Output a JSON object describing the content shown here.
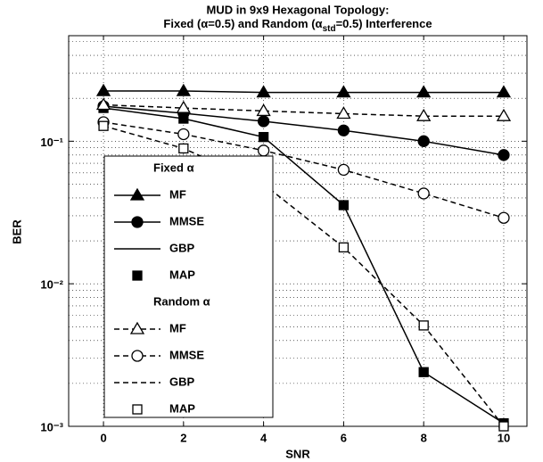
{
  "chart_data": {
    "type": "line",
    "title": [
      "MUD in 9x9 Hexagonal Topology:",
      "Fixed (α=0.5) and Random (α",
      "std",
      "=0.5) Interference"
    ],
    "x_label": "SNR",
    "y_label": "BER",
    "x": [
      0,
      2,
      4,
      6,
      8,
      10
    ],
    "xlim": [
      -0.87,
      10.58
    ],
    "xticks": [
      0,
      2,
      4,
      6,
      8,
      10
    ],
    "ylim": [
      0.001,
      0.55
    ],
    "yticks": [
      {
        "value": 0.001,
        "label": "10⁻³"
      },
      {
        "value": 0.01,
        "label": "10⁻²"
      },
      {
        "value": 0.1,
        "label": "10⁻¹"
      }
    ],
    "log_y": true,
    "grid": true,
    "legend": "lower left",
    "series_groups": [
      {
        "name": "Fixed α",
        "series": [
          {
            "name": "MF",
            "color": "#000000",
            "line": "solid",
            "marker": "triangle",
            "filled": true,
            "values": [
              0.225,
              0.225,
              0.22,
              0.22,
              0.22,
              0.22
            ]
          },
          {
            "name": "MMSE",
            "color": "#000000",
            "line": "solid",
            "marker": "circle",
            "filled": true,
            "values": [
              0.176,
              0.157,
              0.138,
              0.119,
              0.1,
              0.08
            ]
          },
          {
            "name": "GBP",
            "color": "#000000",
            "line": "solid",
            "marker": "none",
            "filled": true,
            "values": [
              0.171,
              0.144,
              0.107,
              0.0356,
              0.0024,
              0.00105
            ]
          },
          {
            "name": "MAP",
            "color": "#000000",
            "line": "none",
            "marker": "square",
            "filled": true,
            "values": [
              0.171,
              0.144,
              0.107,
              0.0356,
              0.0024,
              0.00105
            ]
          }
        ]
      },
      {
        "name": "Random α",
        "series": [
          {
            "name": "MF",
            "color": "#000000",
            "line": "dashed",
            "marker": "triangle",
            "filled": false,
            "values": [
              0.18,
              0.171,
              0.163,
              0.156,
              0.15,
              0.15
            ]
          },
          {
            "name": "MMSE",
            "color": "#000000",
            "line": "dashed",
            "marker": "circle",
            "filled": false,
            "values": [
              0.136,
              0.112,
              0.086,
              0.063,
              0.043,
              0.029
            ]
          },
          {
            "name": "GBP",
            "color": "#000000",
            "line": "dashed",
            "marker": "none",
            "filled": false,
            "values": [
              0.128,
              0.089,
              0.05,
              0.018,
              0.0051,
              0.001
            ]
          },
          {
            "name": "MAP",
            "color": "#000000",
            "line": "none",
            "marker": "square",
            "filled": false,
            "values": [
              0.128,
              0.089,
              0.05,
              0.018,
              0.0051,
              0.001
            ]
          }
        ]
      }
    ]
  }
}
